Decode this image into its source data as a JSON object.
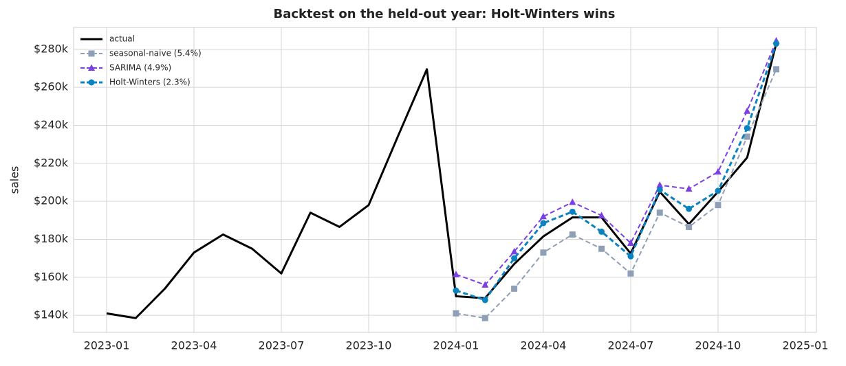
{
  "chart_data": {
    "type": "line",
    "title": "Backtest on the held-out year: Holt-Winters wins",
    "y_label": "sales",
    "x": [
      "2023-01",
      "2023-02",
      "2023-03",
      "2023-04",
      "2023-05",
      "2023-06",
      "2023-07",
      "2023-08",
      "2023-09",
      "2023-10",
      "2023-11",
      "2023-12",
      "2024-01",
      "2024-02",
      "2024-03",
      "2024-04",
      "2024-05",
      "2024-06",
      "2024-07",
      "2024-08",
      "2024-09",
      "2024-10",
      "2024-11",
      "2024-12"
    ],
    "series": [
      {
        "name": "actual",
        "color": "#000000",
        "linestyle": "solid",
        "marker": "none",
        "width": 3,
        "values": [
          141000,
          138500,
          154000,
          173000,
          182500,
          175000,
          162000,
          194000,
          186500,
          198000,
          234000,
          269500,
          150000,
          149000,
          167000,
          181500,
          191500,
          191500,
          172500,
          205000,
          188000,
          205000,
          223000,
          283000
        ]
      },
      {
        "name": "seasonal-naive (5.4%)",
        "color": "#8f9fb5",
        "linestyle": "dashed",
        "marker": "square",
        "width": 2,
        "values": [
          null,
          null,
          null,
          null,
          null,
          null,
          null,
          null,
          null,
          null,
          null,
          null,
          141000,
          138500,
          154000,
          173000,
          182500,
          175000,
          162000,
          194000,
          186500,
          198000,
          234000,
          269500
        ]
      },
      {
        "name": "SARIMA (4.9%)",
        "color": "#7b3fe4",
        "linestyle": "dashed",
        "marker": "triangle",
        "width": 2,
        "values": [
          null,
          null,
          null,
          null,
          null,
          null,
          null,
          null,
          null,
          null,
          null,
          null,
          161500,
          156000,
          173500,
          192000,
          199500,
          192500,
          178000,
          208500,
          206500,
          215500,
          247500,
          284500
        ]
      },
      {
        "name": "Holt-Winters (2.3%)",
        "color": "#0a83c0",
        "linestyle": "dashed",
        "marker": "circle",
        "width": 3,
        "values": [
          null,
          null,
          null,
          null,
          null,
          null,
          null,
          null,
          null,
          null,
          null,
          null,
          153000,
          148000,
          170000,
          188500,
          194500,
          184000,
          171000,
          206000,
          196000,
          205500,
          238500,
          283000
        ]
      }
    ],
    "xticks": [
      "2023-01",
      "2023-04",
      "2023-07",
      "2023-10",
      "2024-01",
      "2024-04",
      "2024-07",
      "2024-10",
      "2025-01"
    ],
    "ylim": [
      131000,
      291500
    ],
    "yticks": [
      {
        "value": 140000,
        "label": "$140k"
      },
      {
        "value": 160000,
        "label": "$160k"
      },
      {
        "value": 180000,
        "label": "$180k"
      },
      {
        "value": 200000,
        "label": "$200k"
      },
      {
        "value": 220000,
        "label": "$220k"
      },
      {
        "value": 240000,
        "label": "$240k"
      },
      {
        "value": 260000,
        "label": "$260k"
      },
      {
        "value": 280000,
        "label": "$280k"
      }
    ],
    "grid": true,
    "legend": "upper-left"
  }
}
